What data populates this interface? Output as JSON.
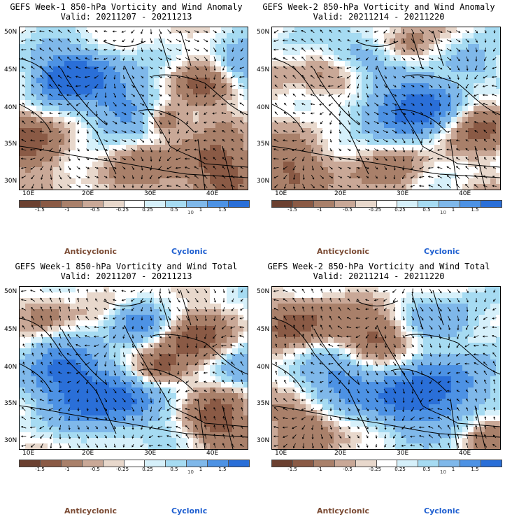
{
  "panels": [
    {
      "title": "GEFS Week-1 850-hPa Vorticity and Wind Anomaly",
      "valid": "Valid: 20211207 - 20211213",
      "lat_labels": [
        "50N",
        "45N",
        "40N",
        "35N",
        "30N"
      ],
      "lon_labels": [
        "10E",
        "20E",
        "30E",
        "40E"
      ],
      "colorbar_ticks": [
        "-1.5",
        "-1",
        "-0.5",
        "-0.25",
        "0.25",
        "0.5",
        "1",
        "1.5"
      ],
      "colorbar_unit": "10",
      "anticyclonic_label": "Anticyclonic",
      "cyclonic_label": "Cyclonic",
      "pattern": "anomaly1"
    },
    {
      "title": "GEFS Week-2 850-hPa Vorticity and Wind Anomaly",
      "valid": "Valid: 20211214 - 20211220",
      "lat_labels": [
        "50N",
        "45N",
        "40N",
        "35N",
        "30N"
      ],
      "lon_labels": [
        "10E",
        "20E",
        "30E",
        "40E"
      ],
      "colorbar_ticks": [
        "-1.5",
        "-1",
        "-0.5",
        "-0.25",
        "0.25",
        "0.5",
        "1",
        "1.5"
      ],
      "colorbar_unit": "10",
      "anticyclonic_label": "Anticyclonic",
      "cyclonic_label": "Cyclonic",
      "pattern": "anomaly2"
    },
    {
      "title": "GEFS Week-1 850-hPa Vorticity and Wind Total",
      "valid": "Valid: 20211207 - 20211213",
      "lat_labels": [
        "50N",
        "45N",
        "40N",
        "35N",
        "30N"
      ],
      "lon_labels": [
        "10E",
        "20E",
        "30E",
        "40E"
      ],
      "colorbar_ticks": [
        "-1.5",
        "-1",
        "-0.5",
        "-0.25",
        "0.25",
        "0.5",
        "1",
        "1.5"
      ],
      "colorbar_unit": "10",
      "anticyclonic_label": "Anticyclonic",
      "cyclonic_label": "Cyclonic",
      "pattern": "total1"
    },
    {
      "title": "GEFS Week-2 850-hPa Vorticity and Wind Total",
      "valid": "Valid: 20211214 - 20211220",
      "lat_labels": [
        "50N",
        "45N",
        "40N",
        "35N",
        "30N"
      ],
      "lon_labels": [
        "10E",
        "20E",
        "30E",
        "40E"
      ],
      "colorbar_ticks": [
        "-1.5",
        "-1",
        "-0.5",
        "-0.25",
        "0.25",
        "0.5",
        "1",
        "1.5"
      ],
      "colorbar_unit": "10",
      "anticyclonic_label": "Anticyclonic",
      "cyclonic_label": "Cyclonic",
      "pattern": "total2"
    }
  ],
  "colorbar_colors": [
    "#6b4030",
    "#8a5a45",
    "#a9806a",
    "#c9a897",
    "#e8d8cc",
    "#ffffff",
    "#d6f0fa",
    "#a6dbf2",
    "#7fb8ea",
    "#4d92e4",
    "#2a6fd8"
  ]
}
